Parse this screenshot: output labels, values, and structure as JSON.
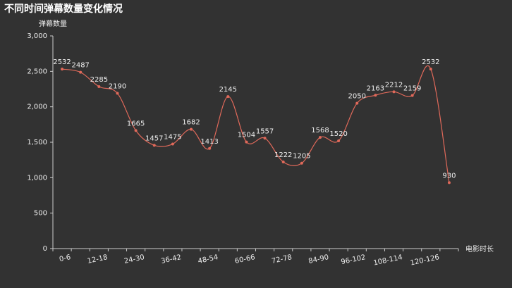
{
  "chart_data": {
    "type": "line",
    "title": "不同时间弹幕数量变化情况",
    "y_axis_label": "弹幕数量",
    "x_axis_label": "电影时长",
    "categories": [
      "0-6",
      null,
      "12-18",
      null,
      "24-30",
      null,
      "36-42",
      null,
      "48-54",
      null,
      "60-66",
      null,
      "72-78",
      null,
      "84-90",
      null,
      "96-102",
      null,
      "108-114",
      null,
      "120-126",
      null
    ],
    "series": [
      {
        "name": "弹幕数量",
        "color": "#e0695a",
        "values": [
          2532,
          2487,
          2285,
          2190,
          1665,
          1457,
          1475,
          1682,
          1413,
          2145,
          1504,
          1557,
          1222,
          1205,
          1568,
          1520,
          2050,
          2163,
          2212,
          2159,
          2532,
          930
        ]
      }
    ],
    "ylim": [
      0,
      3000
    ],
    "yticks": [
      0,
      500,
      {
        "value": 1000,
        "label": "1,000"
      },
      {
        "value": 1500,
        "label": "1,500"
      },
      {
        "value": 2000,
        "label": "2,000"
      },
      {
        "value": 2500,
        "label": "2,500"
      },
      {
        "value": 3000,
        "label": "3,000"
      }
    ],
    "smooth": true
  }
}
